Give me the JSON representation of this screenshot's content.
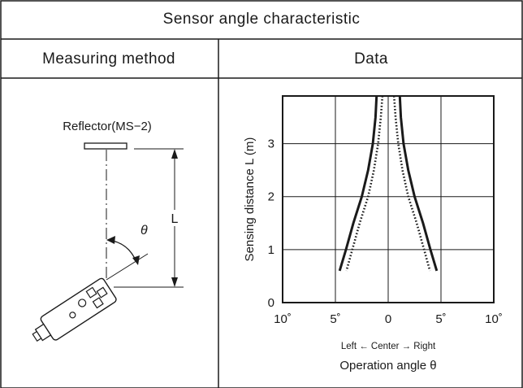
{
  "header": {
    "title": "Sensor angle characteristic",
    "col_method": "Measuring method",
    "col_data": "Data"
  },
  "method": {
    "reflector_label": "Reflector(MS−2)",
    "distance_label": "L",
    "angle_label": "θ"
  },
  "chart_data": {
    "type": "line",
    "ylabel": "Sensing distance L (m)",
    "xlabel_line1": "Left ← Center → Right",
    "xlabel_line2": "Operation angle θ",
    "x_tick_labels": [
      "10˚",
      "5˚",
      "0",
      "5˚",
      "10˚"
    ],
    "y_tick_labels": [
      "0",
      "1",
      "2",
      "3"
    ],
    "xlim": [
      -10,
      10
    ],
    "ylim": [
      0,
      3.9
    ],
    "grid": true,
    "series": [
      {
        "style": "solid",
        "left": [
          [
            -1.1,
            3.9
          ],
          [
            -1.2,
            3.5
          ],
          [
            -1.45,
            3.0
          ],
          [
            -1.9,
            2.5
          ],
          [
            -2.5,
            2.0
          ],
          [
            -3.3,
            1.5
          ],
          [
            -4.0,
            1.0
          ],
          [
            -4.6,
            0.6
          ]
        ],
        "right": [
          [
            1.1,
            3.9
          ],
          [
            1.2,
            3.5
          ],
          [
            1.45,
            3.0
          ],
          [
            1.9,
            2.5
          ],
          [
            2.5,
            2.0
          ],
          [
            3.3,
            1.5
          ],
          [
            4.0,
            1.0
          ],
          [
            4.6,
            0.6
          ]
        ]
      },
      {
        "style": "dotted",
        "left": [
          [
            -0.55,
            3.9
          ],
          [
            -0.7,
            3.5
          ],
          [
            -0.95,
            3.0
          ],
          [
            -1.35,
            2.5
          ],
          [
            -1.9,
            2.0
          ],
          [
            -2.7,
            1.5
          ],
          [
            -3.4,
            1.0
          ],
          [
            -3.95,
            0.6
          ]
        ],
        "right": [
          [
            0.55,
            3.9
          ],
          [
            0.7,
            3.5
          ],
          [
            0.95,
            3.0
          ],
          [
            1.35,
            2.5
          ],
          [
            1.9,
            2.0
          ],
          [
            2.7,
            1.5
          ],
          [
            3.4,
            1.0
          ],
          [
            3.95,
            0.6
          ]
        ]
      }
    ]
  }
}
